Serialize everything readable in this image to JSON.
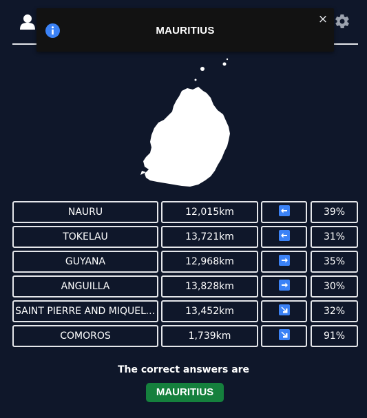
{
  "header": {
    "user_icon": "user-icon",
    "settings_icon": "gear-icon"
  },
  "toast": {
    "icon": "info-icon",
    "title": "MAURITIUS",
    "close_label": "×"
  },
  "country_shape": {
    "name": "mauritius-silhouette",
    "color": "#ffffff"
  },
  "guesses": [
    {
      "name": "NAURU",
      "distance": "12,015km",
      "direction": "left",
      "proximity": "39%"
    },
    {
      "name": "TOKELAU",
      "distance": "13,721km",
      "direction": "left",
      "proximity": "31%"
    },
    {
      "name": "GUYANA",
      "distance": "12,968km",
      "direction": "right",
      "proximity": "35%"
    },
    {
      "name": "ANGUILLA",
      "distance": "13,828km",
      "direction": "right",
      "proximity": "30%"
    },
    {
      "name": "SAINT PIERRE AND MIQUELON",
      "distance": "13,452km",
      "direction": "down-right",
      "proximity": "32%"
    },
    {
      "name": "COMOROS",
      "distance": "1,739km",
      "direction": "down-right",
      "proximity": "91%"
    }
  ],
  "result": {
    "label": "The correct answers are",
    "answer": "MAURITIUS"
  },
  "colors": {
    "background": "#0f172a",
    "toast_background": "#121212",
    "info_blue": "#3b82f6",
    "correct_green": "#15803d",
    "border": "#e5e7eb"
  }
}
